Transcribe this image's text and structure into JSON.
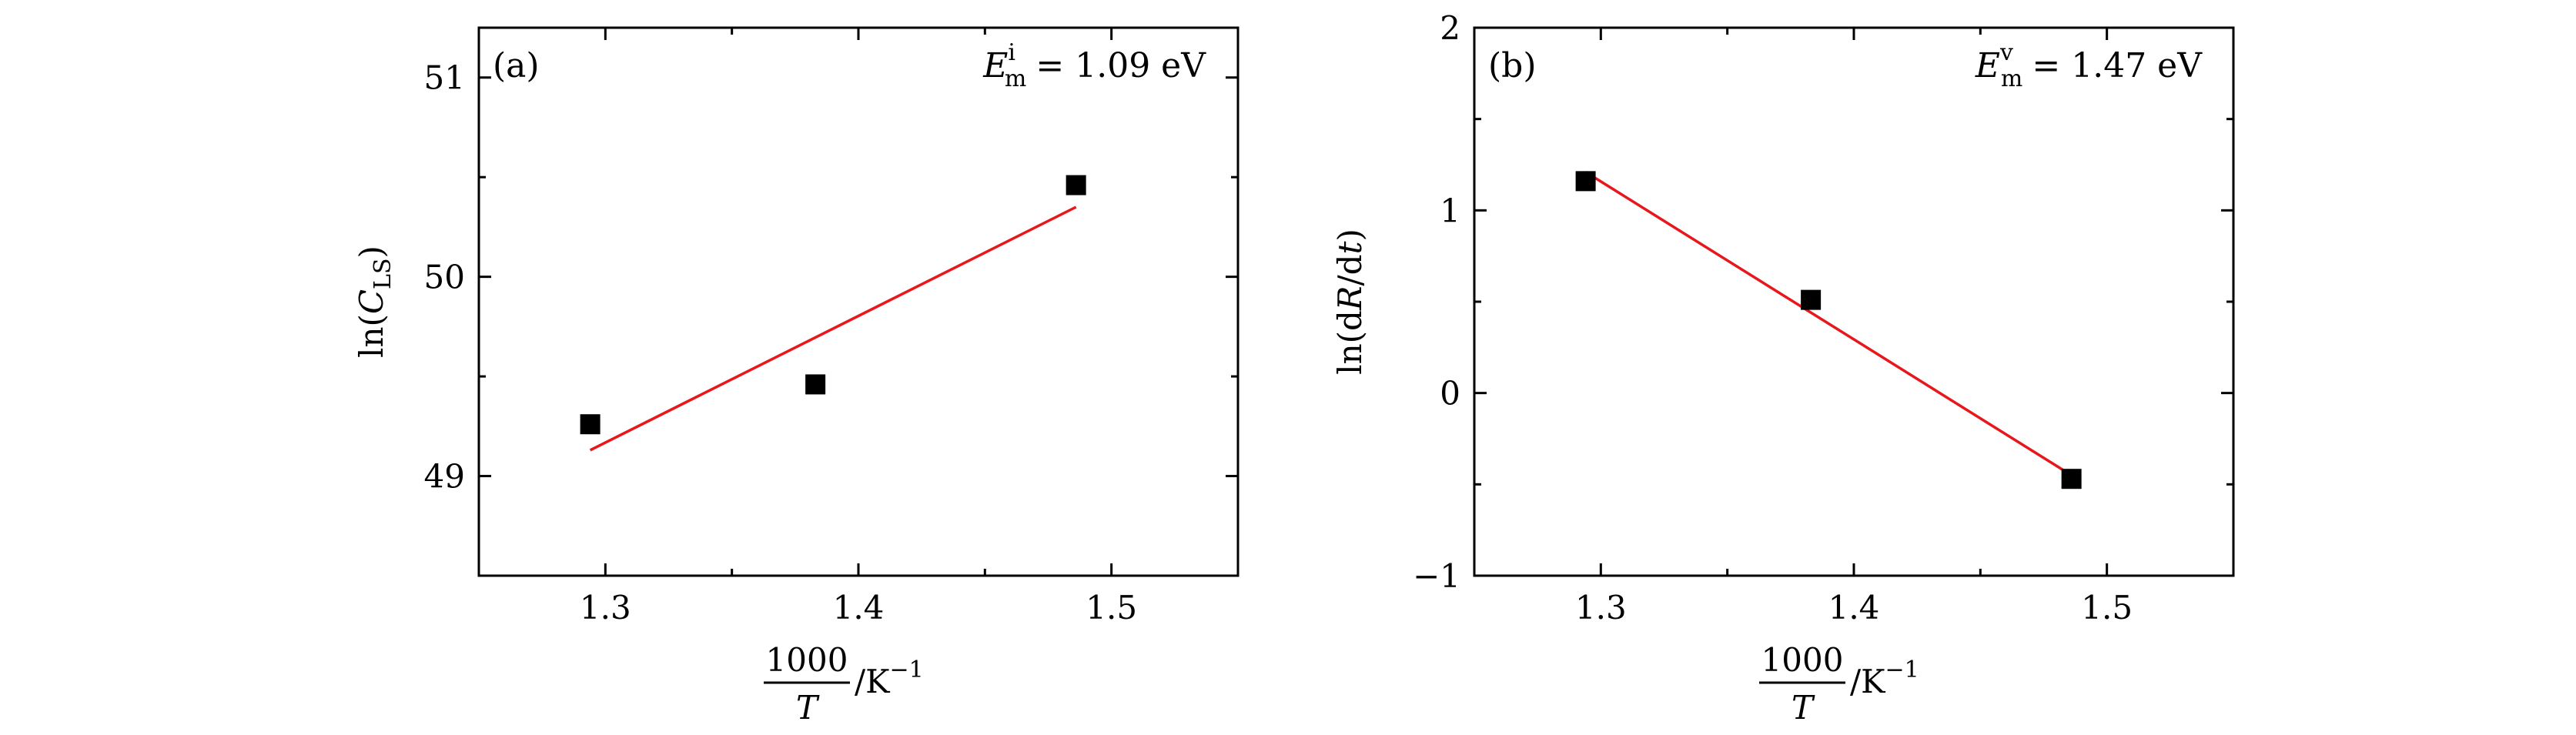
{
  "chart_data": [
    {
      "type": "scatter",
      "panel_label": "(a)",
      "annotation": {
        "symbol": "E",
        "sup": "i",
        "sub": "m",
        "value": "= 1.09 eV"
      },
      "ylabel": {
        "pre": "ln(",
        "var": "C",
        "sub": "LS",
        "post": ")"
      },
      "xlabel": {
        "numerator": "1000",
        "denominator": "T",
        "unit": "/K",
        "unit_exp": "−1"
      },
      "xlim": [
        1.25,
        1.55
      ],
      "ylim": [
        48.5,
        51.25
      ],
      "xticks": [
        1.3,
        1.4,
        1.5
      ],
      "xtick_labels": [
        "1.3",
        "1.4",
        "1.5"
      ],
      "xminor": [
        1.25,
        1.35,
        1.45,
        1.55
      ],
      "yticks": [
        49,
        50,
        51
      ],
      "ytick_labels": [
        "49",
        "50",
        "51"
      ],
      "yminor": [
        48.5,
        49.5,
        50.5
      ],
      "points": [
        {
          "x": 1.294,
          "y": 49.26
        },
        {
          "x": 1.383,
          "y": 49.46
        },
        {
          "x": 1.486,
          "y": 50.46
        }
      ],
      "fit": {
        "x": [
          1.294,
          1.486
        ],
        "y": [
          49.13,
          50.35
        ],
        "color": "#e8171b"
      },
      "marker_color": "#000000"
    },
    {
      "type": "scatter",
      "panel_label": "(b)",
      "annotation": {
        "symbol": "E",
        "sup": "v",
        "sub": "m",
        "value": "= 1.47 eV"
      },
      "ylabel": {
        "pre": "ln(d",
        "var": "R",
        "mid": "/d",
        "var2": "t",
        "post": ")"
      },
      "xlabel": {
        "numerator": "1000",
        "denominator": "T",
        "unit": "/K",
        "unit_exp": "−1"
      },
      "xlim": [
        1.25,
        1.55
      ],
      "ylim": [
        -1,
        2
      ],
      "xticks": [
        1.3,
        1.4,
        1.5
      ],
      "xtick_labels": [
        "1.3",
        "1.4",
        "1.5"
      ],
      "xminor": [
        1.25,
        1.35,
        1.45,
        1.55
      ],
      "yticks": [
        -1,
        0,
        1,
        2
      ],
      "ytick_labels": [
        "−1",
        "0",
        "1",
        "2"
      ],
      "yminor": [
        -0.5,
        0.5,
        1.5
      ],
      "points": [
        {
          "x": 1.294,
          "y": 1.16
        },
        {
          "x": 1.383,
          "y": 0.51
        },
        {
          "x": 1.486,
          "y": -0.47
        }
      ],
      "fit": {
        "x": [
          1.294,
          1.486
        ],
        "y": [
          1.21,
          -0.45
        ],
        "color": "#e8171b"
      },
      "marker_color": "#000000"
    }
  ]
}
